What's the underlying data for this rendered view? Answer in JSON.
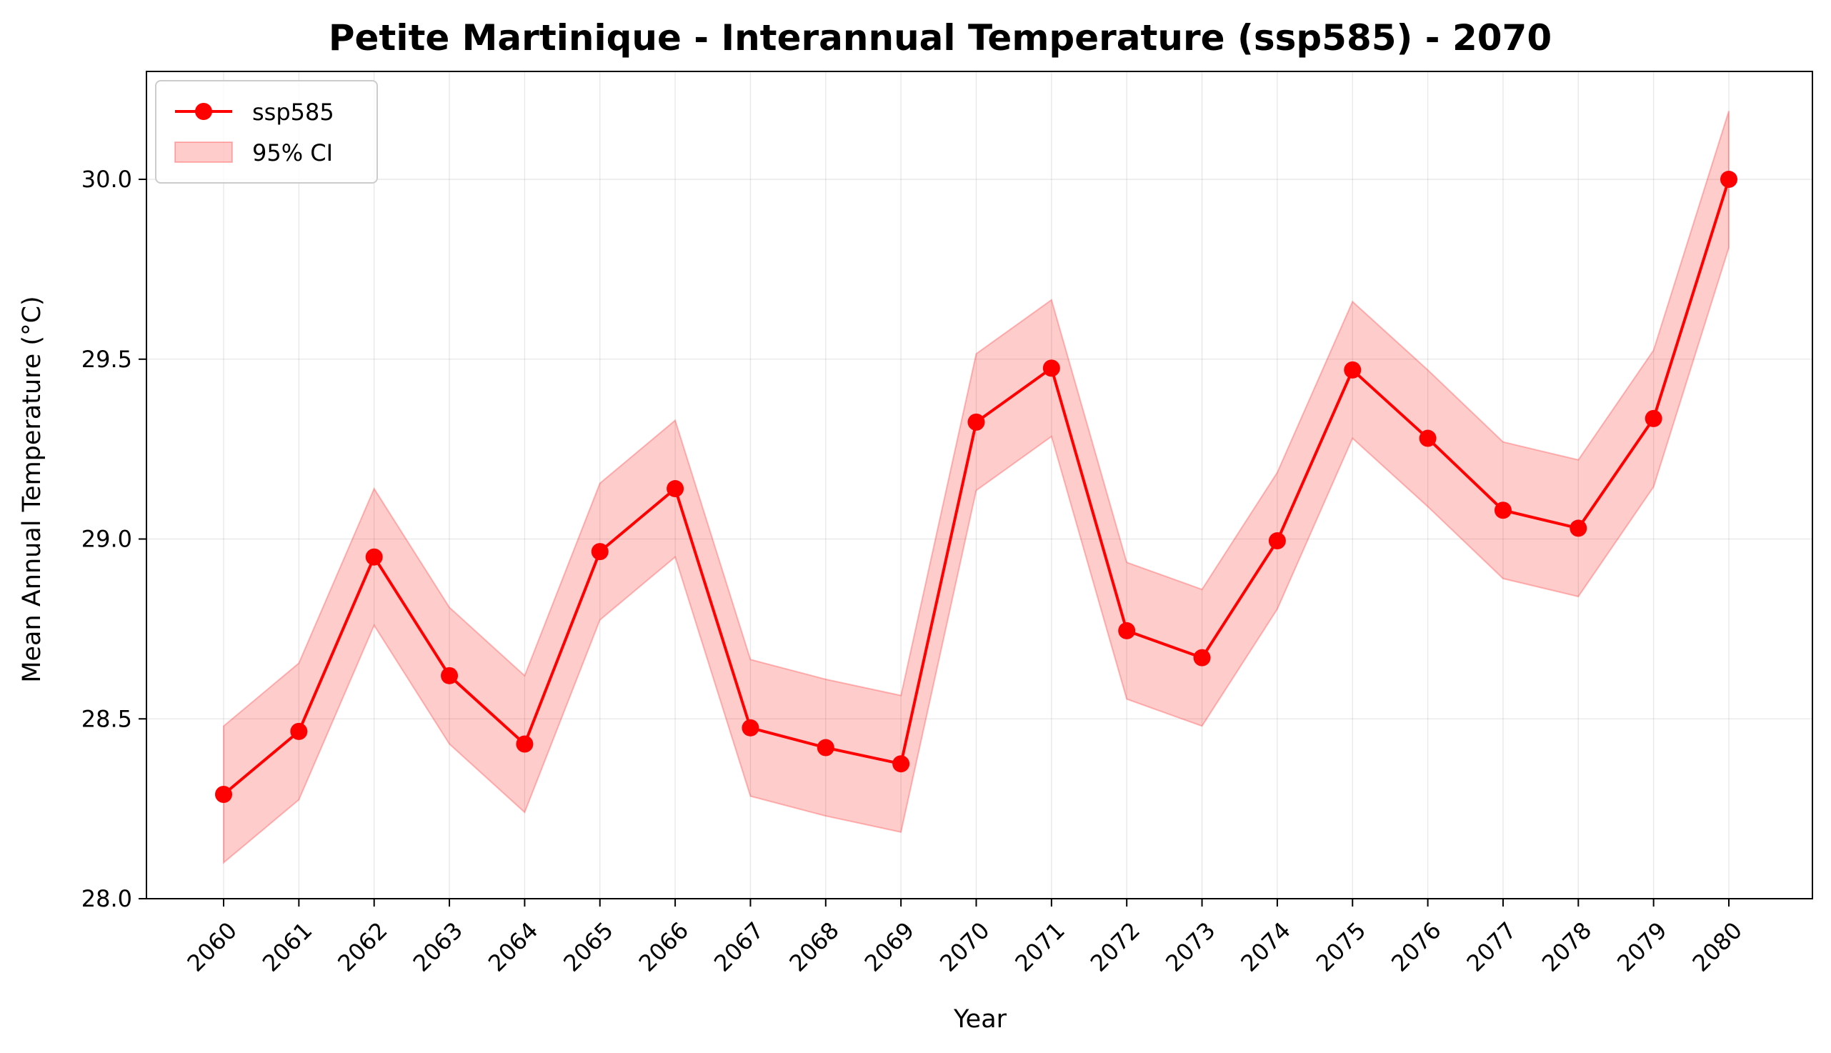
{
  "chart_data": {
    "type": "line",
    "title": "Petite Martinique - Interannual Temperature (ssp585) - 2070",
    "xlabel": "Year",
    "ylabel": "Mean Annual Temperature (°C)",
    "x": [
      "2060",
      "2061",
      "2062",
      "2063",
      "2064",
      "2065",
      "2066",
      "2067",
      "2068",
      "2069",
      "2070",
      "2071",
      "2072",
      "2073",
      "2074",
      "2075",
      "2076",
      "2077",
      "2078",
      "2079",
      "2080"
    ],
    "ylim": [
      28.0,
      30.3
    ],
    "yticks": [
      "28.0",
      "28.5",
      "29.0",
      "29.5",
      "30.0"
    ],
    "grid": true,
    "legend_position": "top-left",
    "series": [
      {
        "name": "ssp585",
        "color": "#ff0000",
        "values": [
          28.29,
          28.465,
          28.95,
          28.62,
          28.43,
          28.965,
          29.14,
          28.475,
          28.42,
          28.375,
          29.325,
          29.475,
          28.745,
          28.67,
          28.995,
          29.47,
          29.28,
          29.08,
          29.03,
          29.335,
          30.0
        ]
      }
    ],
    "confidence_band": {
      "name": "95% CI",
      "color": "#ff0000",
      "opacity": 0.2,
      "lower": [
        28.1,
        28.275,
        28.76,
        28.43,
        28.24,
        28.775,
        28.95,
        28.285,
        28.23,
        28.185,
        29.135,
        29.285,
        28.555,
        28.48,
        28.805,
        29.28,
        29.09,
        28.89,
        28.84,
        29.145,
        29.81
      ],
      "upper": [
        28.48,
        28.655,
        29.14,
        28.81,
        28.62,
        29.155,
        29.33,
        28.665,
        28.61,
        28.565,
        29.515,
        29.665,
        28.935,
        28.86,
        29.185,
        29.66,
        29.47,
        29.27,
        29.22,
        29.525,
        30.19
      ]
    }
  }
}
